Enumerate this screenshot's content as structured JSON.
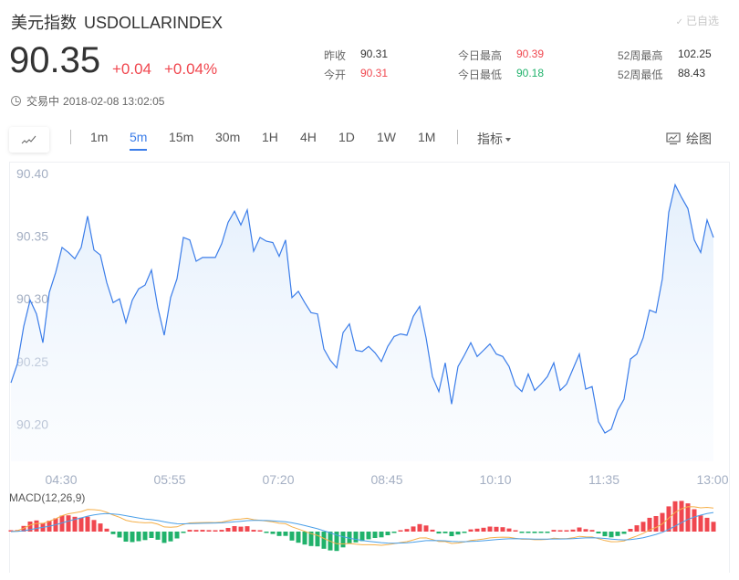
{
  "header": {
    "name_cn": "美元指数",
    "symbol": "USDOLLARINDEX",
    "favorite_label": "已自选",
    "price": "90.35",
    "change": "+0.04",
    "change_pct": "+0.04%",
    "status_label": "交易中",
    "timestamp": "2018-02-08 13:02:05"
  },
  "stats": {
    "prev_close": {
      "label": "昨收",
      "value": "90.31"
    },
    "open": {
      "label": "今开",
      "value": "90.31"
    },
    "day_high": {
      "label": "今日最高",
      "value": "90.39"
    },
    "day_low": {
      "label": "今日最低",
      "value": "90.18"
    },
    "week52_high": {
      "label": "52周最高",
      "value": "102.25"
    },
    "week52_low": {
      "label": "52周最低",
      "value": "88.43"
    }
  },
  "toolbar": {
    "chart_type_icon": "line-chart-icon",
    "timeframes": [
      "1m",
      "5m",
      "15m",
      "30m",
      "1H",
      "4H",
      "1D",
      "1W",
      "1M"
    ],
    "active_timeframe": "5m",
    "indicator_label": "指标",
    "draw_label": "绘图"
  },
  "colors": {
    "line": "#3b7de9",
    "up": "#f0474f",
    "down": "#20b26b",
    "axis_text": "#a4afc3",
    "macd_dif": "#4a9fe8",
    "macd_dea": "#f5b04a"
  },
  "macd": {
    "label": "MACD(12,26,9)"
  },
  "chart_data": {
    "type": "area",
    "title": "美元指数 USDOLLARINDEX 5m",
    "xlabel": "",
    "ylabel": "",
    "ylim": [
      90.18,
      90.41
    ],
    "yticks": [
      "90.40",
      "90.35",
      "90.30",
      "90.25",
      "90.20"
    ],
    "xticks": [
      "04:30",
      "05:55",
      "07:20",
      "08:45",
      "10:10",
      "11:35",
      "13:00"
    ],
    "grid": false,
    "legend": "none",
    "values": [
      90.233,
      90.248,
      90.278,
      90.299,
      90.288,
      90.265,
      90.305,
      90.321,
      90.341,
      90.337,
      90.332,
      90.341,
      90.366,
      90.339,
      90.335,
      90.313,
      90.297,
      90.3,
      90.281,
      90.299,
      90.308,
      90.311,
      90.323,
      90.293,
      90.271,
      90.301,
      90.316,
      90.349,
      90.347,
      90.33,
      90.333,
      90.333,
      90.333,
      90.344,
      90.361,
      90.37,
      90.359,
      90.371,
      90.338,
      90.349,
      90.346,
      90.345,
      90.334,
      90.347,
      90.301,
      90.306,
      90.297,
      90.289,
      90.288,
      90.26,
      90.251,
      90.245,
      90.273,
      90.28,
      90.259,
      90.258,
      90.262,
      90.257,
      90.25,
      90.262,
      90.27,
      90.272,
      90.271,
      90.286,
      90.294,
      90.269,
      90.238,
      90.226,
      90.249,
      90.216,
      90.246,
      90.255,
      90.265,
      90.254,
      90.259,
      90.264,
      90.256,
      90.254,
      90.246,
      90.231,
      90.226,
      90.24,
      90.227,
      90.232,
      90.238,
      90.249,
      90.227,
      90.232,
      90.244,
      90.256,
      90.228,
      90.23,
      90.202,
      90.193,
      90.196,
      90.211,
      90.22,
      90.252,
      90.256,
      90.269,
      90.291,
      90.289,
      90.316,
      90.369,
      90.391,
      90.381,
      90.372,
      90.347,
      90.337,
      90.363,
      90.349
    ]
  }
}
